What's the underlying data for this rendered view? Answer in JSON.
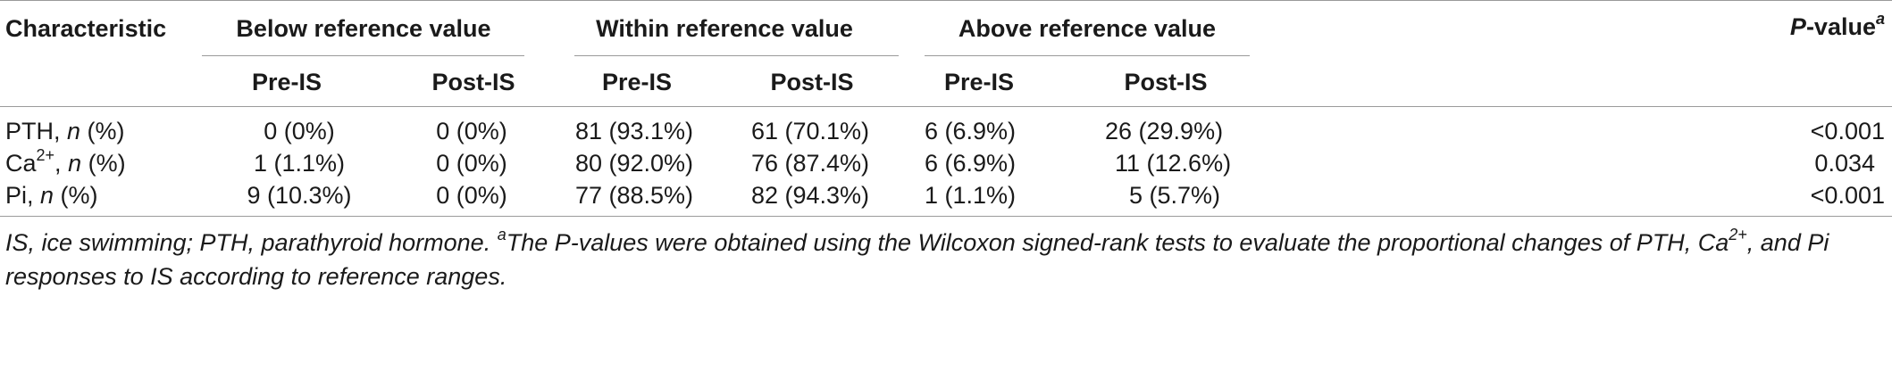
{
  "table": {
    "headers": {
      "characteristic": "Characteristic",
      "group_below": "Below reference value",
      "group_within": "Within reference value",
      "group_above": "Above reference value",
      "pvalue_main": "P",
      "pvalue_rest": "-value",
      "pvalue_sup": "a",
      "pre": "Pre-IS",
      "post": "Post-IS"
    },
    "rows": [
      {
        "label_main": "PTH, ",
        "label_sup": "",
        "label_rest": ", ",
        "label_n": "n",
        "label_tail": " (%)",
        "below_pre": "0 (0%)",
        "below_post": "0 (0%)",
        "within_pre": "81 (93.1%)",
        "within_post": "61 (70.1%)",
        "above_pre": "6 (6.9%)",
        "above_post": "26 (29.9%)",
        "p": "<0.001"
      },
      {
        "label_main": "Ca",
        "label_sup": "2+",
        "label_rest": ", ",
        "label_n": "n",
        "label_tail": " (%)",
        "below_pre": "1 (1.1%)",
        "below_post": "0 (0%)",
        "within_pre": "80 (92.0%)",
        "within_post": "76 (87.4%)",
        "above_pre": "6 (6.9%)",
        "above_post": "11 (12.6%)",
        "p": "0.034"
      },
      {
        "label_main": "Pi, ",
        "label_sup": "",
        "label_rest": "",
        "label_n": "n",
        "label_tail": " (%)",
        "below_pre": "9 (10.3%)",
        "below_post": "0 (0%)",
        "within_pre": "77 (88.5%)",
        "within_post": "82 (94.3%)",
        "above_pre": "1 (1.1%)",
        "above_post": "5 (5.7%)",
        "p": "<0.001"
      }
    ]
  },
  "footnote": {
    "part1": "IS, ice swimming; PTH, parathyroid hormone. ",
    "sup_a": "a",
    "part2": "The P-values were obtained using the Wilcoxon signed-rank tests to evaluate the proportional changes of PTH, Ca",
    "sup_ca": "2+",
    "part3": ", and Pi responses to IS according to reference ranges."
  }
}
